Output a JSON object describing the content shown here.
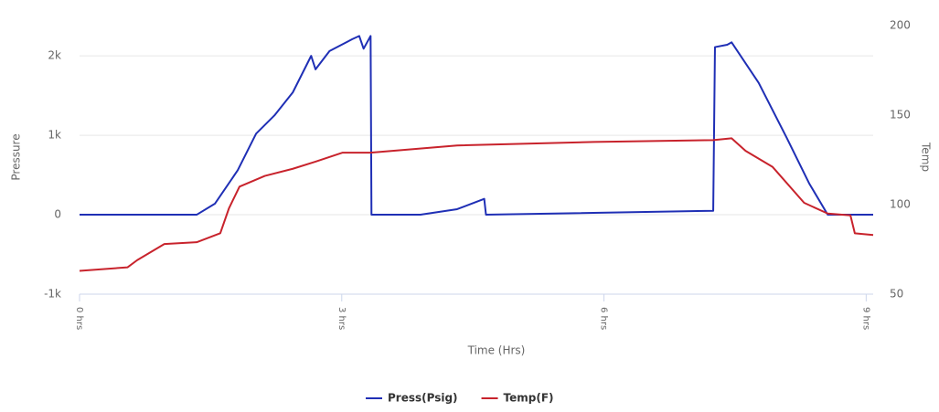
{
  "chart_data": {
    "type": "line",
    "x_label": "Time (Hrs)",
    "y_label": "Pressure",
    "y2_label": "Temp",
    "xlim": [
      0,
      9.08
    ],
    "xticks": [
      {
        "value": 0,
        "label": "0 hrs"
      },
      {
        "value": 3,
        "label": "3 hrs"
      },
      {
        "value": 6,
        "label": "6 hrs"
      },
      {
        "value": 9,
        "label": "9 hrs"
      }
    ],
    "ylim": [
      -1000,
      2450
    ],
    "yticks": [
      {
        "value": -1000,
        "label": "-1k"
      },
      0,
      {
        "value": 1000,
        "label": "1k"
      },
      {
        "value": 2000,
        "label": "2k"
      }
    ],
    "y2lim": [
      50,
      203
    ],
    "y2ticks": [
      50,
      100,
      150,
      200
    ],
    "grid": true,
    "legend": "bottom",
    "series": [
      {
        "name": "Press(Psig)",
        "color": "#1f2fb5",
        "x": [
          0,
          1.34,
          1.55,
          1.81,
          2.02,
          2.23,
          2.44,
          2.65,
          2.7,
          2.86,
          3.12,
          3.2,
          3.25,
          3.33,
          3.34,
          3.9,
          4.32,
          4.63,
          4.65,
          7.25,
          7.27,
          7.41,
          7.46,
          7.77,
          8.09,
          8.35,
          8.56,
          9.08
        ],
        "values": [
          0,
          0,
          140,
          560,
          1020,
          1250,
          1540,
          2000,
          1830,
          2060,
          2210,
          2250,
          2090,
          2250,
          0,
          0,
          70,
          200,
          0,
          50,
          2110,
          2140,
          2170,
          1660,
          970,
          390,
          0,
          0
        ]
      },
      {
        "name": "Temp(F)",
        "color": "#c8232c",
        "axis": "y2",
        "x": [
          0,
          0.55,
          0.66,
          0.97,
          1.34,
          1.61,
          1.71,
          1.83,
          2.12,
          2.44,
          2.7,
          3.01,
          3.33,
          4.32,
          5.89,
          7.25,
          7.46,
          7.62,
          7.93,
          8.29,
          8.56,
          8.82,
          8.87,
          9.08
        ],
        "values": [
          63,
          65,
          69,
          78,
          79,
          84,
          98,
          110,
          116,
          120,
          124,
          129,
          129,
          133,
          135,
          136,
          137,
          130,
          121,
          101,
          95,
          94,
          84,
          83
        ]
      }
    ]
  }
}
